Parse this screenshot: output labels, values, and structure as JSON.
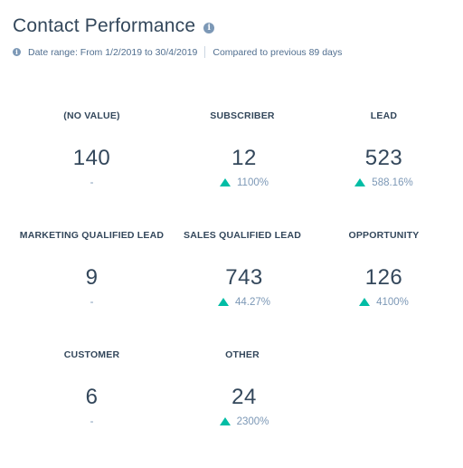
{
  "header": {
    "title": "Contact Performance",
    "date_range": "Date range: From 1/2/2019 to 30/4/2019",
    "comparison": "Compared to previous 89 days"
  },
  "colors": {
    "text": "#33475b",
    "muted": "#7c98b6",
    "increase": "#00bda5"
  },
  "metrics": [
    {
      "label": "(NO VALUE)",
      "value": "140",
      "change": "-",
      "trend": "none"
    },
    {
      "label": "SUBSCRIBER",
      "value": "12",
      "change": "1100%",
      "trend": "up"
    },
    {
      "label": "LEAD",
      "value": "523",
      "change": "588.16%",
      "trend": "up"
    },
    {
      "label": "MARKETING QUALIFIED LEAD",
      "value": "9",
      "change": "-",
      "trend": "none"
    },
    {
      "label": "SALES QUALIFIED LEAD",
      "value": "743",
      "change": "44.27%",
      "trend": "up"
    },
    {
      "label": "OPPORTUNITY",
      "value": "126",
      "change": "4100%",
      "trend": "up"
    },
    {
      "label": "CUSTOMER",
      "value": "6",
      "change": "-",
      "trend": "none"
    },
    {
      "label": "OTHER",
      "value": "24",
      "change": "2300%",
      "trend": "up"
    }
  ]
}
